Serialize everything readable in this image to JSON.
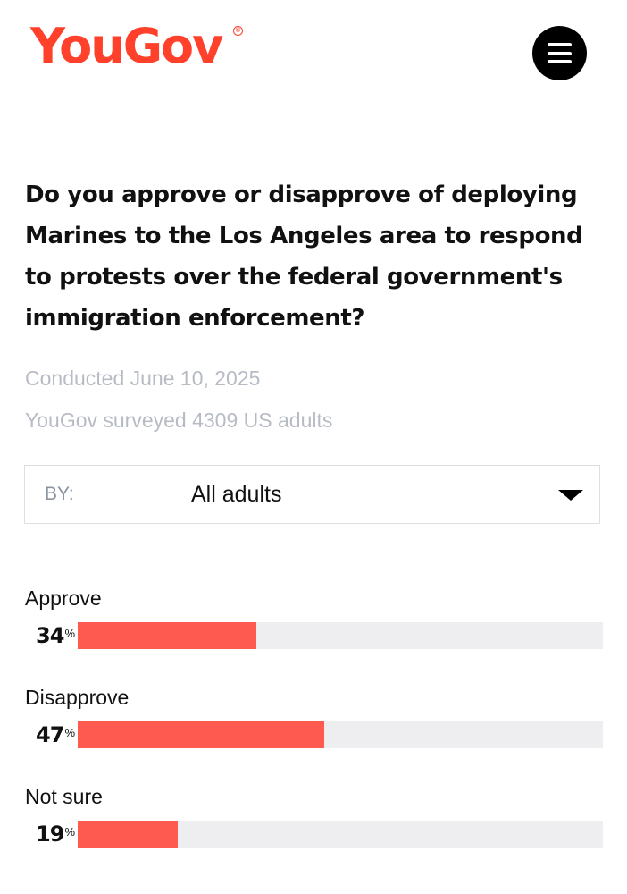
{
  "header": {
    "logo_text": "YouGov",
    "logo_registered": "®",
    "menu_icon": "hamburger-menu-icon"
  },
  "question": "Do you approve or disapprove of deploying Marines to the Los Angeles area to respond to protests over the federal government's immigration enforcement?",
  "meta": {
    "conducted": "Conducted June 10, 2025",
    "surveyed": "YouGov surveyed 4309 US adults"
  },
  "filter": {
    "label": "BY:",
    "selected": "All adults",
    "icon": "caret-down-icon"
  },
  "results": [
    {
      "label": "Approve",
      "value": 34,
      "value_text": "34",
      "unit": "%"
    },
    {
      "label": "Disapprove",
      "value": 47,
      "value_text": "47",
      "unit": "%"
    },
    {
      "label": "Not sure",
      "value": 19,
      "value_text": "19",
      "unit": "%"
    }
  ],
  "colors": {
    "brand": "#ff412c",
    "bar_fill": "#ff5a4f",
    "bar_track": "#eeeef1",
    "muted_text": "#b7bcc4"
  }
}
